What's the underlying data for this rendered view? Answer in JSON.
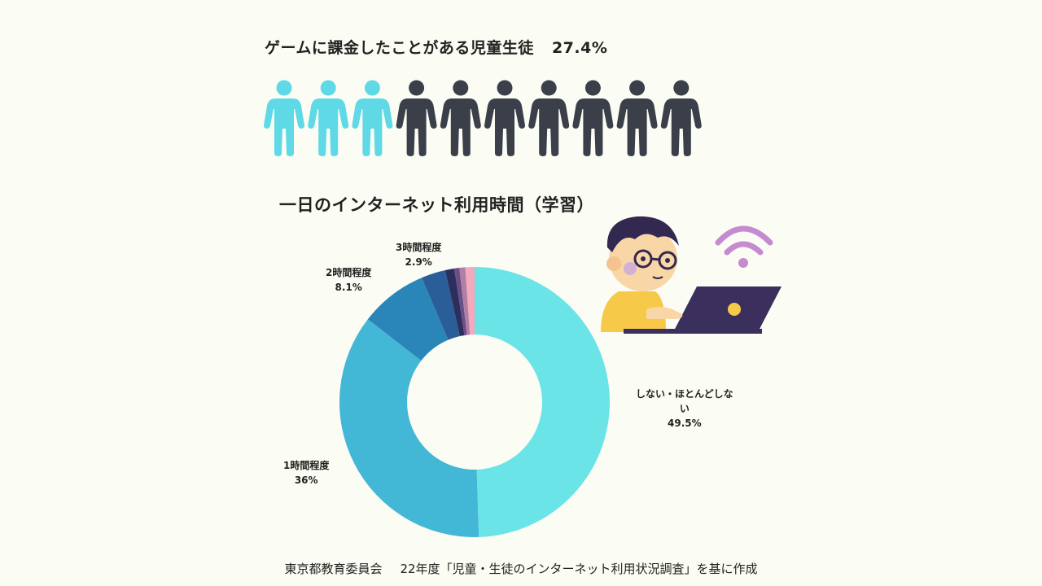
{
  "header": {
    "title": "ゲームに課金したことがある児童生徒",
    "percent": "27.4%"
  },
  "people": {
    "total": 10,
    "highlighted": 3,
    "highlight_color": "#5fd9e6",
    "base_color": "#3a3f4a"
  },
  "chart_data": {
    "type": "pie",
    "title": "一日のインターネット利用時間（学習）",
    "donut": true,
    "slices": [
      {
        "label": "しない・ほとんどしない",
        "value": 49.5,
        "value_text": "49.5%",
        "color": "#6be4e8"
      },
      {
        "label": "1時間程度",
        "value": 36,
        "value_text": "36%",
        "color": "#42b8d6"
      },
      {
        "label": "2時間程度",
        "value": 8.1,
        "value_text": "8.1%",
        "color": "#2a86b8"
      },
      {
        "label": "3時間程度",
        "value": 2.9,
        "value_text": "2.9%",
        "color": "#2a5e98"
      },
      {
        "label": "",
        "value": 1.1,
        "color": "#2c2f5e"
      },
      {
        "label": "",
        "value": 0.6,
        "color": "#6a4e86"
      },
      {
        "label": "",
        "value": 0.7,
        "color": "#b07fa8"
      },
      {
        "label": "",
        "value": 1.1,
        "color": "#f4a9bd"
      }
    ]
  },
  "labels": {
    "none_line1": "しない・ほとんどし",
    "none_line2": "な",
    "none_line3": "い"
  },
  "footer": {
    "org": "東京都教育委員会",
    "source": "22年度「児童・生徒のインターネット利用状況調査」を基に作成"
  }
}
